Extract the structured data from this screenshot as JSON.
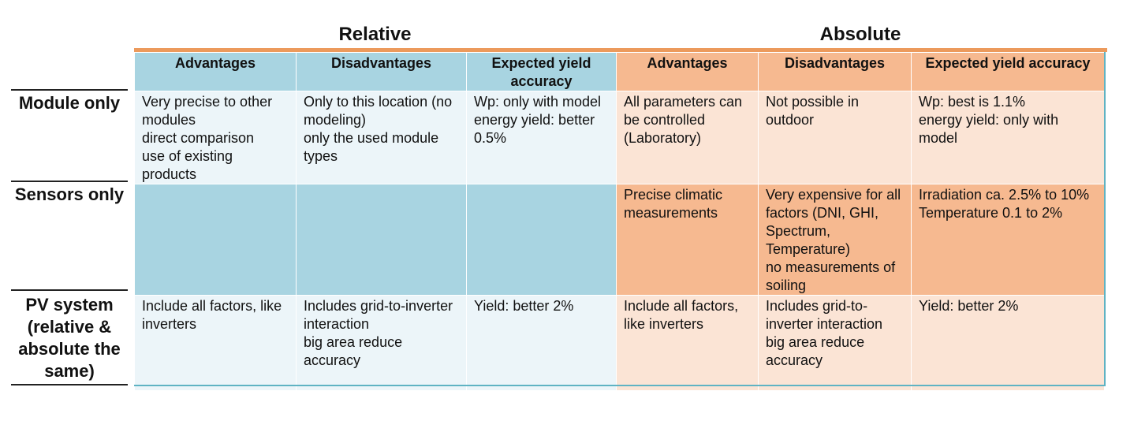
{
  "groups": {
    "relative": "Relative",
    "absolute": "Absolute"
  },
  "headers": {
    "advantages": "Advantages",
    "disadvantages": "Disadvantages",
    "expected_yield": "Expected yield accuracy"
  },
  "rows": {
    "module_only": {
      "label": "Module only",
      "relative_advantages": "Very precise to other modules\ndirect comparison\nuse of existing products",
      "relative_disadvantages": "Only to this location (no modeling)\nonly the used module types",
      "relative_accuracy": "Wp: only with model energy yield: better 0.5%",
      "absolute_advantages": "All parameters can be controlled (Laboratory)",
      "absolute_disadvantages": "Not possible in outdoor",
      "absolute_accuracy": "Wp: best is 1.1%\nenergy yield: only with model"
    },
    "sensors_only": {
      "label": "Sensors only",
      "relative_advantages": "",
      "relative_disadvantages": "",
      "relative_accuracy": "",
      "absolute_advantages": "Precise climatic measurements",
      "absolute_disadvantages": "Very expensive for all factors (DNI, GHI, Spectrum, Temperature)\nno measurements of soiling",
      "absolute_accuracy": "Irradiation ca. 2.5% to 10%\nTemperature 0.1 to 2%"
    },
    "pv_system": {
      "label": "PV system (relative & absolute the same)",
      "relative_advantages": "Include all factors, like inverters",
      "relative_disadvantages": "Includes grid-to-inverter interaction\nbig area reduce accuracy",
      "relative_accuracy": "Yield: better 2%",
      "absolute_advantages": "Include all factors, like inverters",
      "absolute_disadvantages": "Includes grid-to-inverter interaction\nbig area reduce accuracy",
      "absolute_accuracy": "Yield: better 2%"
    }
  },
  "colors": {
    "relative_header": "#a8d4e1",
    "relative_light": "#ecf5f9",
    "absolute_header": "#f6b990",
    "absolute_light": "#fbe4d5",
    "accent_orange": "#ec9a5c",
    "accent_teal": "#5fb3c3"
  }
}
